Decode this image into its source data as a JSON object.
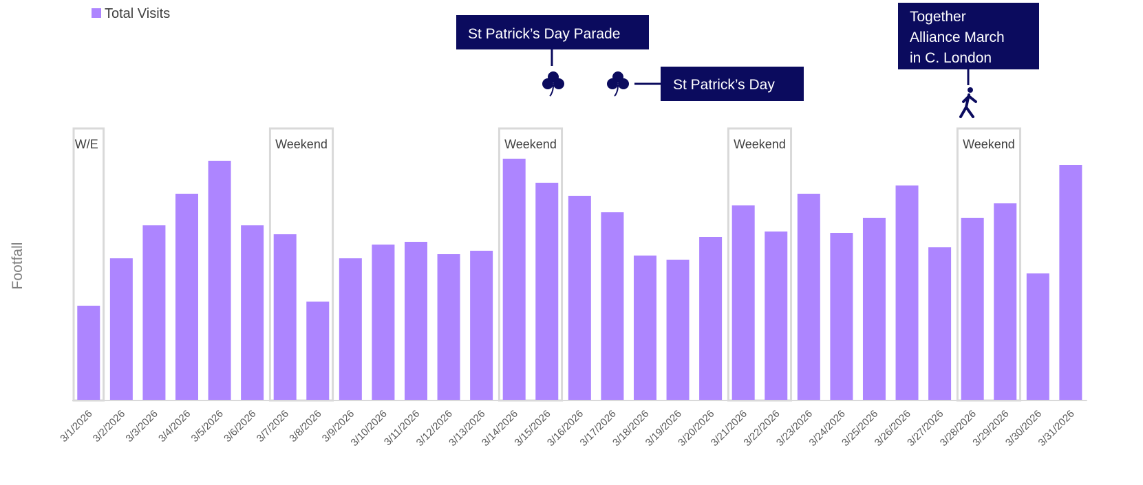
{
  "chart_data": {
    "type": "bar",
    "legend": "Total Visits",
    "y_label": "Footfall",
    "color": "#ad85ff",
    "categories": [
      "3/1/2026",
      "3/2/2026",
      "3/3/2026",
      "3/4/2026",
      "3/5/2026",
      "3/6/2026",
      "3/7/2026",
      "3/8/2026",
      "3/9/2026",
      "3/10/2026",
      "3/11/2026",
      "3/12/2026",
      "3/13/2026",
      "3/14/2026",
      "3/15/2026",
      "3/16/2026",
      "3/17/2026",
      "3/18/2026",
      "3/19/2026",
      "3/20/2026",
      "3/21/2026",
      "3/22/2026",
      "3/23/2026",
      "3/24/2026",
      "3/25/2026",
      "3/26/2026",
      "3/27/2026",
      "3/28/2026",
      "3/29/2026",
      "3/30/2026",
      "3/31/2026"
    ],
    "values": [
      138,
      207,
      255,
      301,
      349,
      255,
      242,
      144,
      207,
      227,
      231,
      213,
      218,
      352,
      317,
      298,
      274,
      211,
      205,
      238,
      284,
      246,
      301,
      244,
      266,
      313,
      223,
      266,
      287,
      185,
      343
    ],
    "ylim": [
      0,
      400
    ],
    "weekend_labels": [
      "W/E",
      "Weekend",
      "Weekend",
      "Weekend",
      "Weekend"
    ],
    "annotations": [
      {
        "text": [
          "St Patrick’s Day Parade"
        ]
      },
      {
        "text": [
          "St Patrick’s Day"
        ]
      },
      {
        "text": [
          "Together",
          "Alliance March",
          "in C. London"
        ]
      }
    ]
  }
}
